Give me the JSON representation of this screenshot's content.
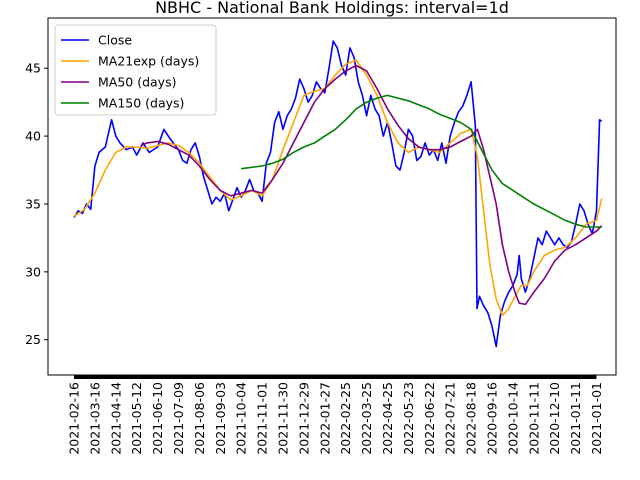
{
  "chart_data": {
    "type": "line",
    "title": "NBHC - National Bank Holdings: interval=1d",
    "xlabel": "",
    "ylabel": "",
    "ylim": [
      22.4,
      48.7
    ],
    "yticks": [
      25,
      30,
      35,
      40,
      45
    ],
    "grid": false,
    "legend_position": "top-left",
    "x_tick_labels": [
      "2021-02-16",
      "2021-03-16",
      "2021-04-14",
      "2021-05-12",
      "2021-06-10",
      "2021-07-09",
      "2021-08-06",
      "2021-09-03",
      "2021-10-04",
      "2021-11-01",
      "2021-11-30",
      "2021-12-29",
      "2022-01-27",
      "2022-02-25",
      "2022-03-25",
      "2022-04-25",
      "2022-05-23",
      "2022-06-22",
      "2022-07-21",
      "2022-08-18",
      "2020-09-16",
      "2020-10-14",
      "2020-11-11",
      "2020-12-10",
      "2021-01-11",
      "2021-01-01"
    ],
    "series": [
      {
        "name": "Close",
        "color": "#0000ff",
        "points": [
          [
            0,
            34.0
          ],
          [
            0.2,
            34.5
          ],
          [
            0.4,
            34.3
          ],
          [
            0.6,
            35.0
          ],
          [
            0.8,
            34.6
          ],
          [
            1.0,
            37.8
          ],
          [
            1.2,
            38.8
          ],
          [
            1.5,
            39.2
          ],
          [
            1.8,
            41.2
          ],
          [
            2.0,
            40.0
          ],
          [
            2.2,
            39.5
          ],
          [
            2.5,
            39.0
          ],
          [
            2.8,
            39.2
          ],
          [
            3.0,
            38.6
          ],
          [
            3.3,
            39.5
          ],
          [
            3.6,
            38.8
          ],
          [
            4.0,
            39.2
          ],
          [
            4.3,
            40.5
          ],
          [
            4.6,
            39.8
          ],
          [
            5.0,
            39.0
          ],
          [
            5.2,
            38.2
          ],
          [
            5.4,
            38.0
          ],
          [
            5.6,
            39.0
          ],
          [
            5.8,
            39.5
          ],
          [
            6.0,
            38.5
          ],
          [
            6.2,
            37.0
          ],
          [
            6.4,
            36.0
          ],
          [
            6.6,
            35.0
          ],
          [
            6.8,
            35.5
          ],
          [
            7.0,
            35.2
          ],
          [
            7.2,
            35.8
          ],
          [
            7.4,
            34.5
          ],
          [
            7.6,
            35.3
          ],
          [
            7.8,
            36.2
          ],
          [
            8.0,
            35.5
          ],
          [
            8.2,
            36.0
          ],
          [
            8.4,
            36.8
          ],
          [
            8.6,
            36.0
          ],
          [
            8.8,
            35.8
          ],
          [
            9.0,
            35.2
          ],
          [
            9.2,
            38.0
          ],
          [
            9.4,
            38.8
          ],
          [
            9.6,
            41.0
          ],
          [
            9.8,
            41.8
          ],
          [
            10.0,
            40.5
          ],
          [
            10.2,
            41.5
          ],
          [
            10.4,
            42.0
          ],
          [
            10.6,
            42.8
          ],
          [
            10.8,
            44.2
          ],
          [
            11.0,
            43.5
          ],
          [
            11.2,
            42.5
          ],
          [
            11.4,
            43.0
          ],
          [
            11.6,
            44.0
          ],
          [
            11.8,
            43.5
          ],
          [
            12.0,
            43.2
          ],
          [
            12.2,
            45.0
          ],
          [
            12.4,
            47.0
          ],
          [
            12.6,
            46.5
          ],
          [
            12.8,
            45.2
          ],
          [
            13.0,
            44.5
          ],
          [
            13.2,
            46.5
          ],
          [
            13.4,
            45.8
          ],
          [
            13.6,
            44.0
          ],
          [
            13.8,
            43.0
          ],
          [
            14.0,
            41.5
          ],
          [
            14.2,
            43.0
          ],
          [
            14.4,
            42.0
          ],
          [
            14.6,
            41.5
          ],
          [
            14.8,
            40.0
          ],
          [
            15.0,
            41.0
          ],
          [
            15.2,
            39.5
          ],
          [
            15.4,
            37.8
          ],
          [
            15.6,
            37.5
          ],
          [
            15.8,
            38.8
          ],
          [
            16.0,
            40.5
          ],
          [
            16.2,
            40.0
          ],
          [
            16.4,
            38.2
          ],
          [
            16.6,
            38.5
          ],
          [
            16.8,
            39.5
          ],
          [
            17.0,
            38.6
          ],
          [
            17.2,
            39.0
          ],
          [
            17.4,
            38.2
          ],
          [
            17.6,
            39.5
          ],
          [
            17.8,
            38.0
          ],
          [
            18.0,
            40.0
          ],
          [
            18.2,
            41.0
          ],
          [
            18.4,
            41.8
          ],
          [
            18.6,
            42.2
          ],
          [
            18.8,
            43.0
          ],
          [
            19.0,
            44.0
          ],
          [
            19.2,
            40.8
          ],
          [
            19.28,
            27.3
          ],
          [
            19.4,
            28.2
          ],
          [
            19.6,
            27.5
          ],
          [
            19.8,
            27.0
          ],
          [
            20.0,
            26.0
          ],
          [
            20.2,
            24.5
          ],
          [
            20.4,
            26.8
          ],
          [
            20.6,
            27.8
          ],
          [
            20.8,
            28.5
          ],
          [
            21.0,
            29.0
          ],
          [
            21.2,
            29.8
          ],
          [
            21.3,
            31.2
          ],
          [
            21.4,
            29.5
          ],
          [
            21.6,
            28.5
          ],
          [
            21.8,
            29.5
          ],
          [
            22.0,
            31.0
          ],
          [
            22.2,
            32.5
          ],
          [
            22.4,
            32.0
          ],
          [
            22.6,
            33.0
          ],
          [
            22.8,
            32.5
          ],
          [
            23.0,
            32.0
          ],
          [
            23.2,
            32.5
          ],
          [
            23.4,
            32.0
          ],
          [
            23.6,
            31.8
          ],
          [
            23.8,
            32.2
          ],
          [
            24.0,
            33.5
          ],
          [
            24.2,
            35.0
          ],
          [
            24.4,
            34.5
          ],
          [
            24.6,
            33.5
          ],
          [
            24.8,
            32.8
          ],
          [
            25.0,
            34.5
          ],
          [
            25.15,
            41.2
          ],
          [
            25.25,
            41.1
          ]
        ]
      },
      {
        "name": "MA21exp (days)",
        "color": "#ffa500",
        "points": [
          [
            0,
            34.1
          ],
          [
            0.5,
            34.6
          ],
          [
            1.0,
            35.8
          ],
          [
            1.5,
            37.5
          ],
          [
            2.0,
            38.8
          ],
          [
            2.5,
            39.2
          ],
          [
            3.0,
            39.2
          ],
          [
            3.5,
            39.1
          ],
          [
            4.0,
            39.3
          ],
          [
            4.5,
            39.5
          ],
          [
            5.0,
            39.3
          ],
          [
            5.5,
            38.8
          ],
          [
            6.0,
            38.0
          ],
          [
            6.5,
            37.0
          ],
          [
            7.0,
            36.0
          ],
          [
            7.5,
            35.3
          ],
          [
            8.0,
            35.6
          ],
          [
            8.5,
            36.0
          ],
          [
            9.0,
            35.6
          ],
          [
            9.5,
            36.8
          ],
          [
            10.0,
            39.0
          ],
          [
            10.5,
            41.0
          ],
          [
            11.0,
            43.0
          ],
          [
            11.5,
            43.3
          ],
          [
            12.0,
            43.5
          ],
          [
            12.5,
            44.5
          ],
          [
            13.0,
            45.3
          ],
          [
            13.5,
            45.6
          ],
          [
            14.0,
            44.5
          ],
          [
            14.5,
            43.0
          ],
          [
            15.0,
            41.0
          ],
          [
            15.5,
            39.5
          ],
          [
            16.0,
            38.8
          ],
          [
            16.5,
            39.2
          ],
          [
            17.0,
            39.0
          ],
          [
            17.5,
            38.8
          ],
          [
            18.0,
            39.5
          ],
          [
            18.5,
            40.2
          ],
          [
            19.0,
            40.5
          ],
          [
            19.3,
            38.5
          ],
          [
            19.6,
            34.5
          ],
          [
            19.9,
            30.5
          ],
          [
            20.2,
            28.0
          ],
          [
            20.5,
            26.8
          ],
          [
            20.8,
            27.3
          ],
          [
            21.1,
            28.2
          ],
          [
            21.4,
            29.0
          ],
          [
            21.7,
            29.0
          ],
          [
            22.0,
            30.0
          ],
          [
            22.5,
            31.2
          ],
          [
            23.0,
            31.6
          ],
          [
            23.5,
            31.8
          ],
          [
            24.0,
            32.5
          ],
          [
            24.5,
            33.5
          ],
          [
            25.0,
            33.8
          ],
          [
            25.25,
            35.4
          ]
        ]
      },
      {
        "name": "MA50 (days)",
        "color": "#800080",
        "points": [
          [
            3.2,
            39.3
          ],
          [
            3.5,
            39.5
          ],
          [
            4.0,
            39.6
          ],
          [
            4.5,
            39.4
          ],
          [
            5.0,
            39.0
          ],
          [
            5.5,
            38.6
          ],
          [
            6.0,
            37.8
          ],
          [
            6.5,
            36.8
          ],
          [
            7.0,
            36.0
          ],
          [
            7.5,
            35.6
          ],
          [
            8.0,
            35.8
          ],
          [
            8.5,
            36.0
          ],
          [
            9.0,
            35.8
          ],
          [
            9.5,
            36.8
          ],
          [
            10.0,
            38.0
          ],
          [
            10.5,
            39.5
          ],
          [
            11.0,
            41.0
          ],
          [
            11.5,
            42.5
          ],
          [
            12.0,
            43.5
          ],
          [
            12.5,
            44.2
          ],
          [
            13.0,
            44.8
          ],
          [
            13.5,
            45.2
          ],
          [
            14.0,
            44.8
          ],
          [
            14.5,
            43.5
          ],
          [
            15.0,
            42.0
          ],
          [
            15.5,
            40.8
          ],
          [
            16.0,
            39.8
          ],
          [
            16.5,
            39.2
          ],
          [
            17.0,
            39.0
          ],
          [
            17.5,
            39.0
          ],
          [
            18.0,
            39.2
          ],
          [
            18.5,
            39.6
          ],
          [
            19.0,
            40.0
          ],
          [
            19.3,
            40.5
          ],
          [
            19.6,
            39.0
          ],
          [
            19.9,
            37.0
          ],
          [
            20.2,
            35.0
          ],
          [
            20.5,
            32.0
          ],
          [
            20.8,
            30.0
          ],
          [
            21.1,
            28.5
          ],
          [
            21.3,
            27.7
          ],
          [
            21.6,
            27.6
          ],
          [
            22.0,
            28.5
          ],
          [
            22.5,
            29.5
          ],
          [
            23.0,
            30.8
          ],
          [
            23.5,
            31.6
          ],
          [
            24.0,
            32.0
          ],
          [
            24.5,
            32.5
          ],
          [
            25.0,
            33.0
          ],
          [
            25.25,
            33.4
          ]
        ]
      },
      {
        "name": "MA150 (days)",
        "color": "#008000",
        "points": [
          [
            8.0,
            37.6
          ],
          [
            8.5,
            37.7
          ],
          [
            9.0,
            37.8
          ],
          [
            9.5,
            38.0
          ],
          [
            10.0,
            38.3
          ],
          [
            10.5,
            38.8
          ],
          [
            11.0,
            39.2
          ],
          [
            11.5,
            39.5
          ],
          [
            12.0,
            40.0
          ],
          [
            12.5,
            40.5
          ],
          [
            13.0,
            41.2
          ],
          [
            13.5,
            42.0
          ],
          [
            14.0,
            42.5
          ],
          [
            14.5,
            42.8
          ],
          [
            15.0,
            43.0
          ],
          [
            15.5,
            42.8
          ],
          [
            16.0,
            42.6
          ],
          [
            16.5,
            42.3
          ],
          [
            17.0,
            42.0
          ],
          [
            17.5,
            41.6
          ],
          [
            18.0,
            41.3
          ],
          [
            18.5,
            41.0
          ],
          [
            19.0,
            40.5
          ],
          [
            19.5,
            39.0
          ],
          [
            20.0,
            37.5
          ],
          [
            20.5,
            36.5
          ],
          [
            21.0,
            36.0
          ],
          [
            21.5,
            35.5
          ],
          [
            22.0,
            35.0
          ],
          [
            22.5,
            34.6
          ],
          [
            23.0,
            34.2
          ],
          [
            23.5,
            33.8
          ],
          [
            24.0,
            33.5
          ],
          [
            24.5,
            33.3
          ],
          [
            25.0,
            33.3
          ],
          [
            25.25,
            33.3
          ]
        ]
      }
    ]
  }
}
